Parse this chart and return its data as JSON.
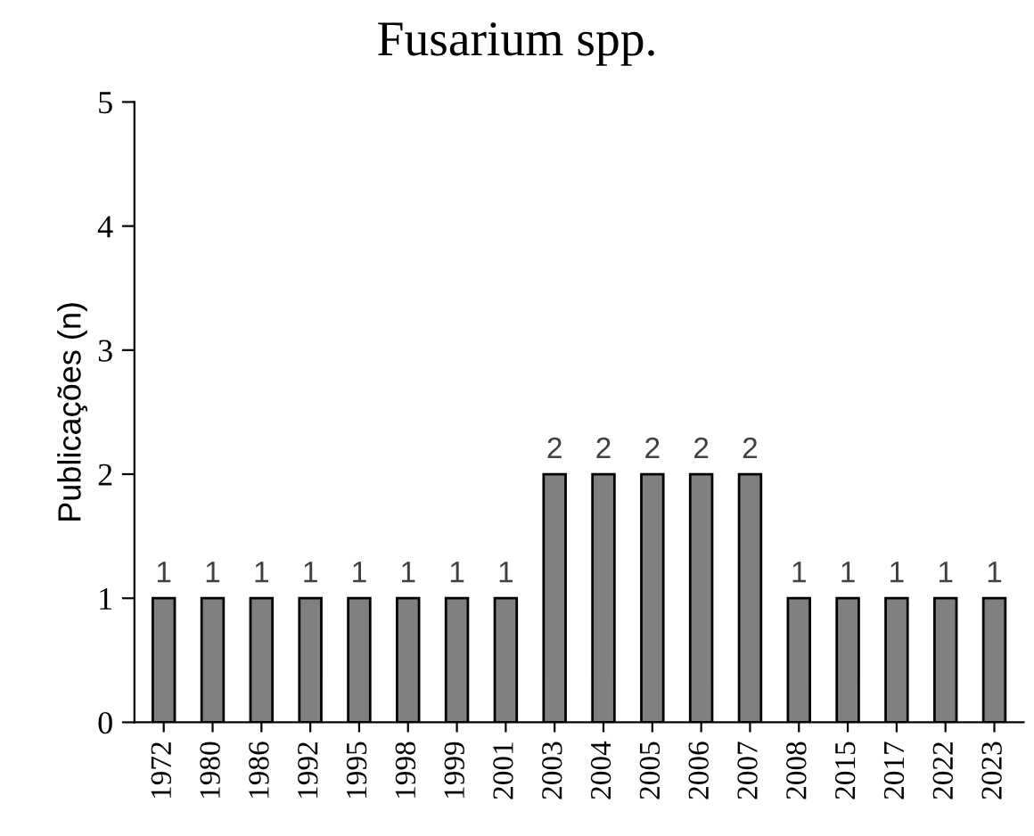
{
  "chart_data": {
    "type": "bar",
    "title": "Fusarium spp.",
    "ylabel": "Publicações (n)",
    "categories": [
      "1972",
      "1980",
      "1986",
      "1992",
      "1995",
      "1998",
      "1999",
      "2001",
      "2003",
      "2004",
      "2005",
      "2006",
      "2007",
      "2008",
      "2015",
      "2017",
      "2022",
      "2023"
    ],
    "values": [
      1,
      1,
      1,
      1,
      1,
      1,
      1,
      1,
      2,
      2,
      2,
      2,
      2,
      1,
      1,
      1,
      1,
      1
    ],
    "color": "#808080",
    "ylim": [
      0,
      5
    ],
    "yticks": [
      0,
      1,
      2,
      3,
      4,
      5
    ],
    "grid": false,
    "data_labels": true
  }
}
